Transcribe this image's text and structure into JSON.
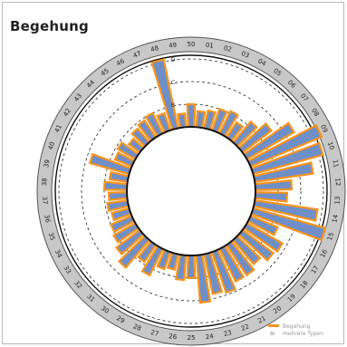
{
  "title": "Begehung",
  "colors": {
    "bar_fill": "#6f8fc9",
    "bar_stroke": "#f7941d",
    "ring_fill": "#c8c8c8",
    "ring_stroke": "#555555",
    "legend_secondary": "#cfcfcf"
  },
  "legend": {
    "primary": "Begehung",
    "secondary": "mehrere Typen"
  },
  "chart_data": {
    "type": "bar",
    "subtype": "radial",
    "title": "Begehung",
    "categories": [
      "01",
      "02",
      "03",
      "04",
      "05",
      "06",
      "07",
      "08",
      "09",
      "10",
      "11",
      "12",
      "13",
      "14",
      "15",
      "16",
      "17",
      "18",
      "19",
      "20",
      "21",
      "22",
      "23",
      "24",
      "25",
      "26",
      "27",
      "28",
      "29",
      "30",
      "31",
      "32",
      "33",
      "34",
      "35",
      "36",
      "37",
      "38",
      "39",
      "40",
      "41",
      "42",
      "43",
      "44",
      "45",
      "46",
      "47",
      "48",
      "49",
      "50"
    ],
    "ring_labels": [
      "B",
      "C",
      "D"
    ],
    "ylim": [
      0,
      4
    ],
    "grid": true,
    "legend_position": "bottom-right",
    "series": [
      {
        "name": "Begehung",
        "values": [
          0.7,
          0.8,
          1.0,
          1.1,
          0.8,
          1.2,
          1.6,
          2.4,
          3.4,
          3.2,
          2.6,
          1.6,
          1.4,
          2.8,
          3.3,
          1.3,
          1.8,
          1.7,
          1.4,
          1.6,
          1.6,
          1.9,
          1.8,
          2.1,
          1.0,
          1.1,
          0.7,
          0.8,
          1.3,
          0.9,
          1.6,
          1.3,
          1.1,
          1.0,
          0.8,
          0.9,
          0.8,
          1.0,
          0.8,
          1.8,
          0.8,
          0.9,
          0.6,
          0.8,
          0.9,
          1.0,
          0.8,
          3.1,
          0.6,
          1.0
        ]
      }
    ]
  }
}
